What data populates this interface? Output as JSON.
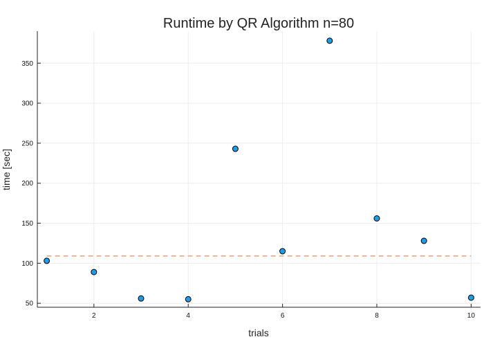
{
  "chart_data": {
    "type": "scatter",
    "title": "Runtime by QR Algorithm  n=80",
    "xlabel": "trials",
    "ylabel": "time [sec]",
    "xlim": [
      0.8,
      10.2
    ],
    "ylim": [
      45,
      390
    ],
    "xticks": [
      2,
      4,
      6,
      8,
      10
    ],
    "yticks": [
      50,
      100,
      150,
      200,
      250,
      300,
      350
    ],
    "grid": true,
    "legend": "none",
    "series": [
      {
        "x": [
          1,
          2,
          3,
          4,
          5,
          6,
          7,
          8,
          9,
          10
        ],
        "y": [
          103,
          89,
          56,
          55,
          243,
          115,
          378,
          156,
          128,
          57
        ],
        "color": "#1f9ce4",
        "edge_color": "#000000",
        "marker": "circle"
      }
    ],
    "reference_line": {
      "y": 109,
      "style": "dashed",
      "color": "#f4a582",
      "x_range": [
        1,
        10
      ]
    }
  }
}
